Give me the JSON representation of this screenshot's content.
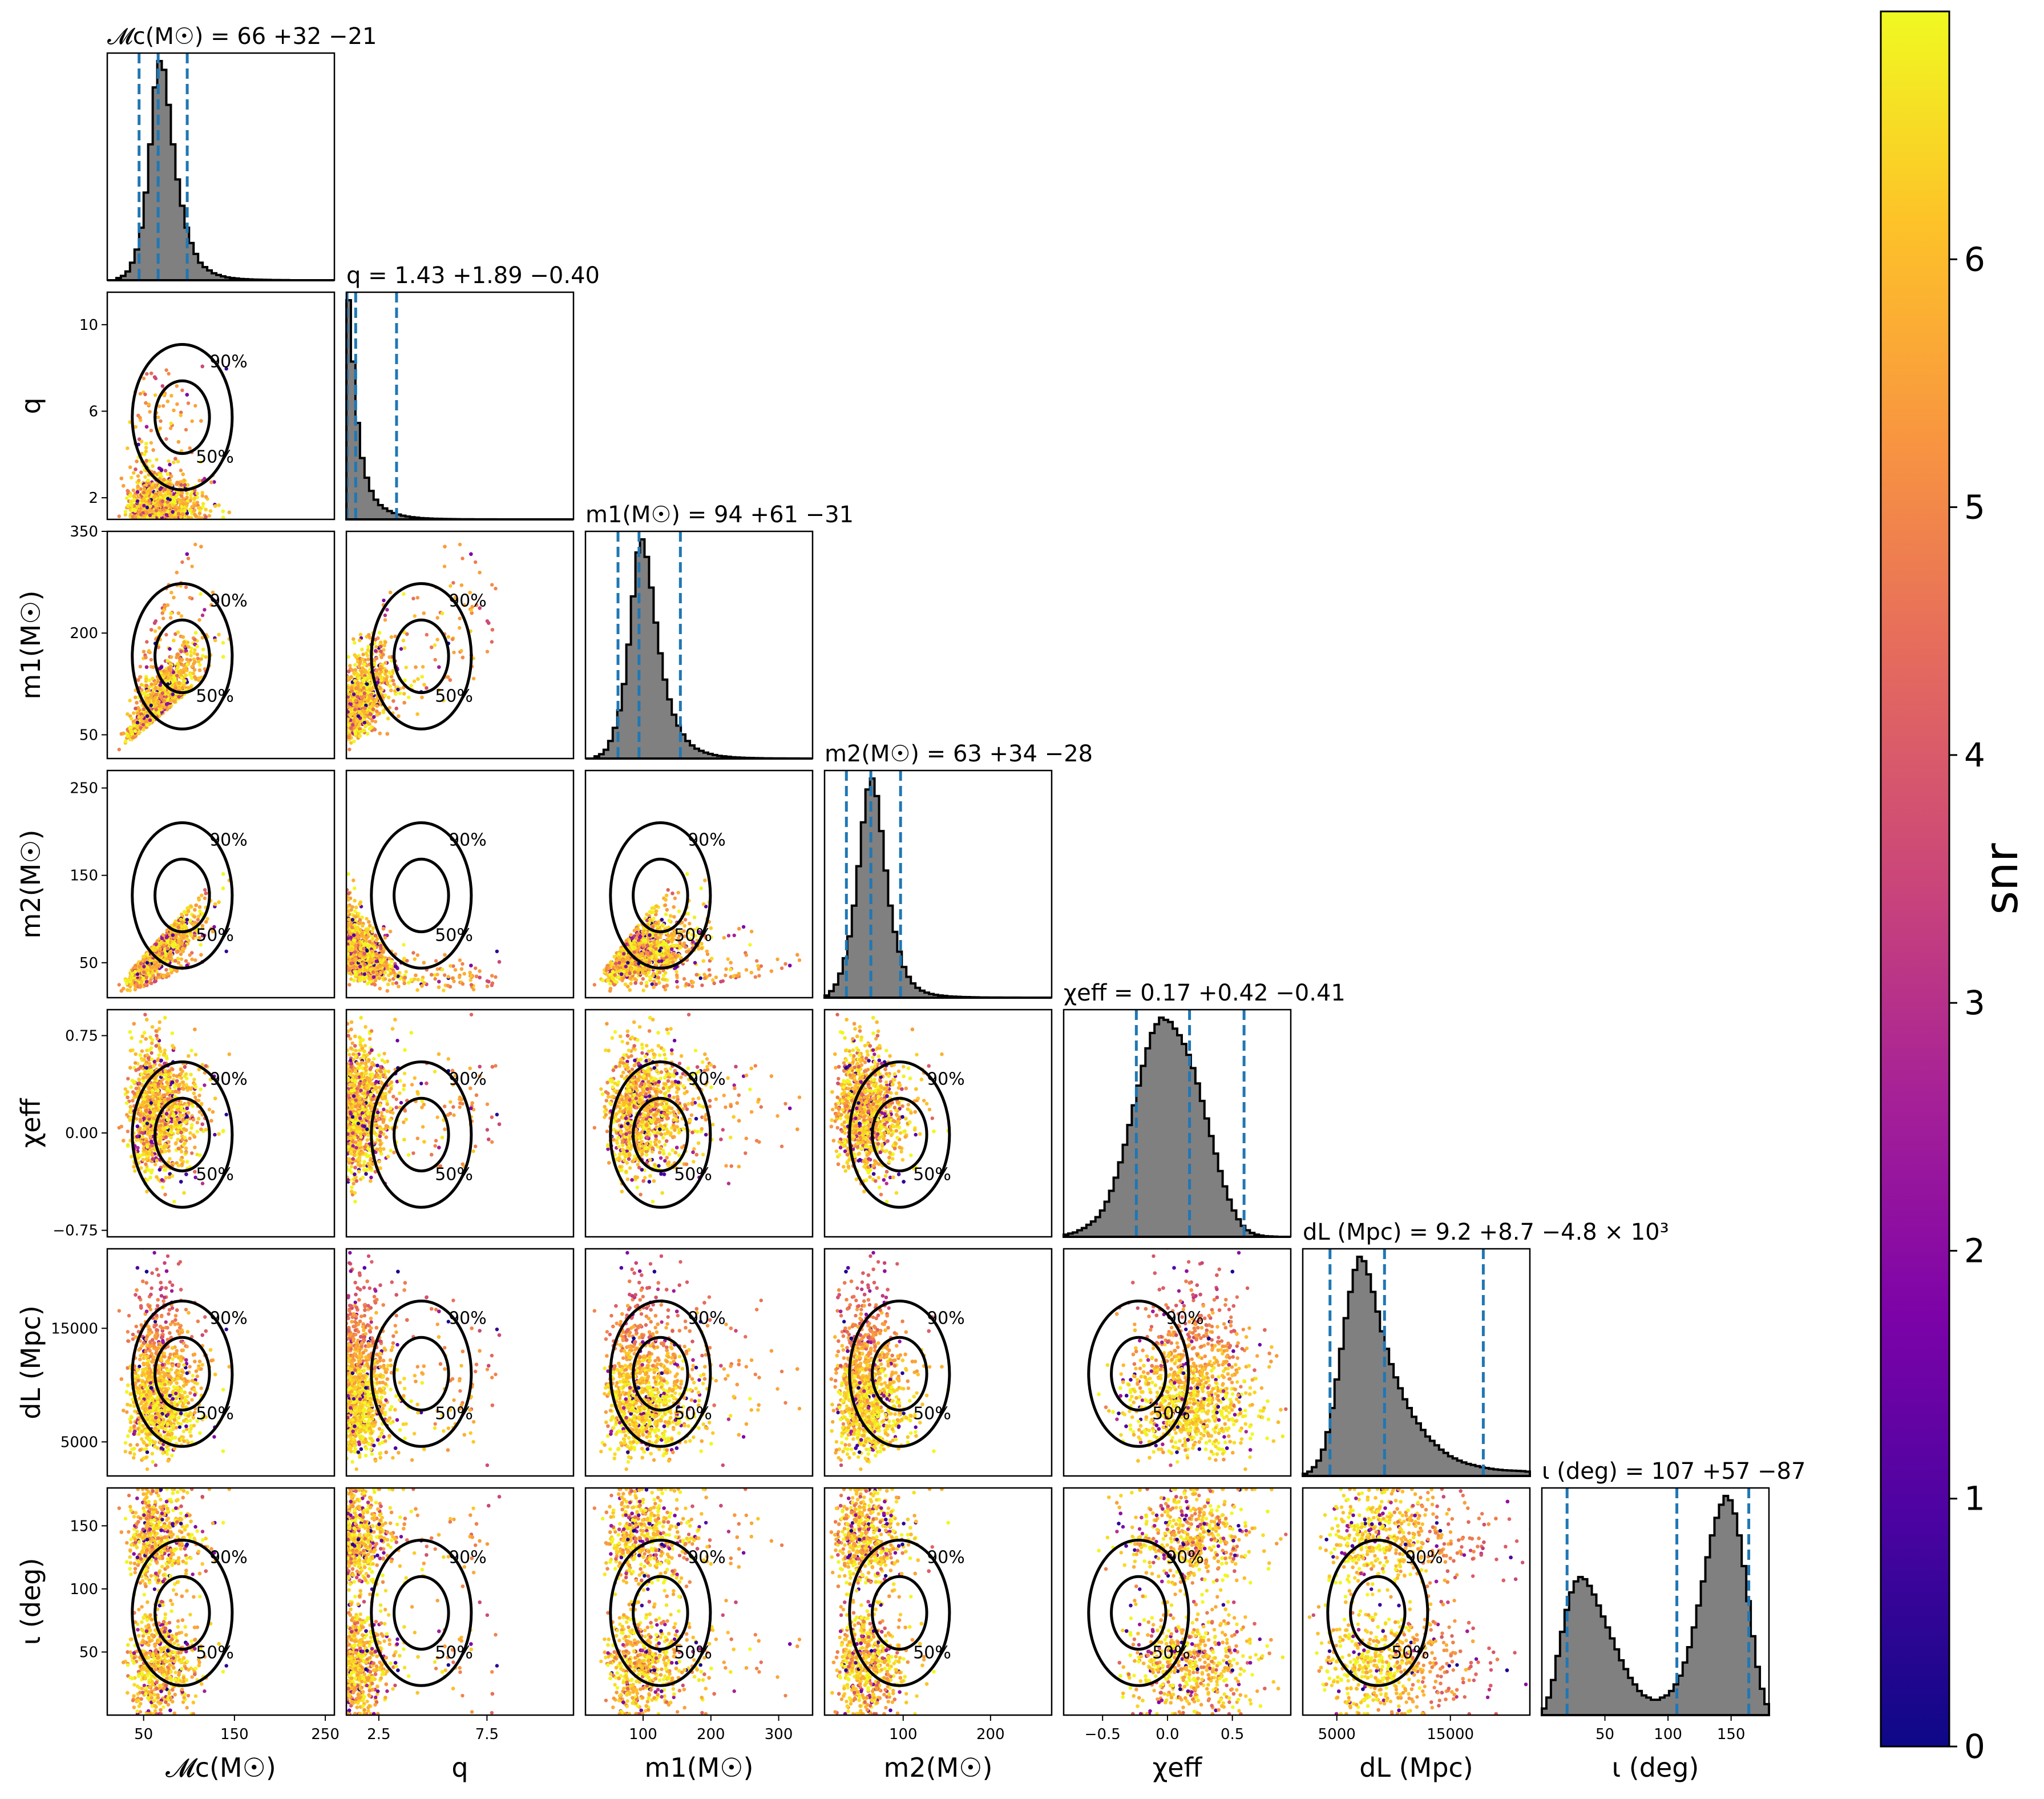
{
  "chart_data": {
    "type": "scatter",
    "description_type": "corner",
    "parameters": [
      {
        "key": "mc",
        "axis_label": "𝓜c(M☉)",
        "title": "𝓜c(M☉) = 66 +32 −21",
        "range": [
          10,
          260
        ],
        "ticks": [
          50,
          150,
          250
        ],
        "median": 66,
        "low": 45,
        "high": 98
      },
      {
        "key": "q",
        "axis_label": "q",
        "title": "q = 1.43 +1.89 −0.40",
        "range": [
          1,
          11.5
        ],
        "ticks": [
          2.5,
          7.5
        ],
        "yticks": [
          2,
          6,
          10
        ],
        "median": 1.43,
        "low": 1.03,
        "high": 3.32
      },
      {
        "key": "m1",
        "axis_label": "m1(M☉)",
        "title": "m1(M☉) = 94 +61 −31",
        "range": [
          15,
          350
        ],
        "ticks": [
          100,
          200,
          300
        ],
        "yticks": [
          50,
          200,
          350
        ],
        "median": 94,
        "low": 63,
        "high": 155
      },
      {
        "key": "m2",
        "axis_label": "m2(M☉)",
        "title": "m2(M☉) = 63 +34 −28",
        "range": [
          10,
          270
        ],
        "ticks": [
          100,
          200
        ],
        "yticks": [
          50,
          150,
          250
        ],
        "median": 63,
        "low": 35,
        "high": 97
      },
      {
        "key": "chi",
        "axis_label": "χeff",
        "title": "χeff = 0.17 +0.42 −0.41",
        "range": [
          -0.8,
          0.95
        ],
        "ticks": [
          -0.5,
          0.0,
          0.5
        ],
        "yticks": [
          -0.75,
          0.0,
          0.75
        ],
        "tick_labels": [
          "−0.5",
          "0.0",
          "0.5"
        ],
        "ytick_labels": [
          "−0.75",
          "0.00",
          "0.75"
        ],
        "median": 0.17,
        "low": -0.24,
        "high": 0.59
      },
      {
        "key": "dl",
        "axis_label": "dL (Mpc)",
        "title": "dL (Mpc) = 9.2 +8.7 −4.8 × 10³",
        "range": [
          2000,
          22000
        ],
        "ticks": [
          5000,
          15000
        ],
        "yticks": [
          5000,
          15000
        ],
        "median": 9200,
        "low": 4400,
        "high": 17900
      },
      {
        "key": "iota",
        "axis_label": "ι (deg)",
        "title": "ι (deg) = 107 +57 −87",
        "range": [
          0,
          180
        ],
        "ticks": [
          50,
          100,
          150
        ],
        "yticks": [
          50,
          100,
          150
        ],
        "median": 107,
        "low": 20,
        "high": 164
      }
    ],
    "histograms": {
      "mc": {
        "bins_from": 10,
        "bins_to": 260,
        "counts": [
          0,
          0,
          1,
          2,
          4,
          8,
          14,
          24,
          40,
          62,
          88,
          100,
          96,
          80,
          62,
          46,
          34,
          24,
          17,
          12,
          8,
          6,
          4.5,
          3.2,
          2.4,
          1.8,
          1.3,
          1,
          0.8,
          0.6,
          0.5,
          0.4,
          0.3,
          0.25,
          0.2,
          0.15,
          0.1,
          0.1,
          0.05,
          0.05,
          0,
          0,
          0,
          0,
          0,
          0,
          0,
          0,
          0,
          0
        ]
      },
      "q": {
        "bins_from": 1,
        "bins_to": 11.5,
        "counts": [
          100,
          72,
          44,
          28,
          19,
          13,
          9,
          6.5,
          5,
          3.8,
          2.9,
          2.2,
          1.7,
          1.3,
          1,
          0.8,
          0.6,
          0.5,
          0.4,
          0.3,
          0.25,
          0.2,
          0.15,
          0.12,
          0.1,
          0.08,
          0.06,
          0.05,
          0.04,
          0.03,
          0.03,
          0.02,
          0.02,
          0.01,
          0.01,
          0.01,
          0,
          0,
          0,
          0,
          0,
          0,
          0,
          0,
          0,
          0,
          0,
          0,
          0,
          0
        ]
      },
      "m1": {
        "bins_from": 15,
        "bins_to": 350,
        "counts": [
          0,
          0,
          1,
          2,
          4,
          8,
          14,
          22,
          34,
          52,
          74,
          94,
          100,
          92,
          78,
          62,
          48,
          36,
          27,
          20,
          15,
          11,
          8,
          6,
          4.5,
          3.5,
          2.7,
          2.1,
          1.6,
          1.2,
          1,
          0.8,
          0.6,
          0.5,
          0.4,
          0.3,
          0.25,
          0.2,
          0.15,
          0.1,
          0.1,
          0.08,
          0.06,
          0.05,
          0.04,
          0.03,
          0.02,
          0.01,
          0,
          0
        ]
      },
      "m2": {
        "bins_from": 10,
        "bins_to": 270,
        "counts": [
          1,
          3,
          6,
          11,
          18,
          28,
          42,
          60,
          80,
          95,
          100,
          92,
          76,
          58,
          42,
          30,
          21,
          14,
          9.5,
          6.5,
          4.5,
          3.2,
          2.3,
          1.7,
          1.3,
          1,
          0.8,
          0.6,
          0.5,
          0.4,
          0.3,
          0.25,
          0.2,
          0.15,
          0.1,
          0.1,
          0.08,
          0.06,
          0.05,
          0.04,
          0.03,
          0.02,
          0.02,
          0.01,
          0.01,
          0,
          0,
          0,
          0,
          0
        ]
      },
      "chi": {
        "bins_from": -0.8,
        "bins_to": 0.95,
        "counts": [
          1,
          1.5,
          2,
          3,
          4,
          5.5,
          7,
          9,
          12,
          16,
          21,
          27,
          34,
          42,
          51,
          60,
          69,
          78,
          86,
          93,
          97,
          100,
          99,
          98,
          95,
          92,
          88,
          83,
          77,
          70,
          62,
          54,
          46,
          38,
          30,
          23,
          17,
          12,
          8,
          5,
          3,
          1.8,
          1,
          0.6,
          0.3,
          0.2,
          0.1,
          0,
          0,
          0
        ]
      },
      "dl": {
        "bins_from": 2000,
        "bins_to": 22000,
        "counts": [
          1,
          2,
          4,
          7,
          12,
          20,
          31,
          44,
          58,
          72,
          84,
          94,
          100,
          98,
          92,
          84,
          75,
          66,
          58,
          51,
          45,
          40,
          35,
          31,
          27,
          24,
          21,
          18,
          16,
          14,
          12,
          10.5,
          9,
          8,
          7,
          6.2,
          5.5,
          5,
          4.5,
          4,
          3.6,
          3.3,
          3,
          2.8,
          2.6,
          2.5,
          2.4,
          2.3,
          2.2,
          2
        ]
      },
      "iota": {
        "bins_from": 0,
        "bins_to": 180,
        "counts": [
          3,
          8,
          16,
          27,
          38,
          48,
          56,
          61,
          63,
          62,
          59,
          55,
          50,
          45,
          40,
          35,
          30,
          25,
          21,
          17,
          14,
          11,
          9,
          8,
          7,
          7,
          8,
          9,
          11,
          14,
          18,
          24,
          31,
          40,
          50,
          61,
          72,
          82,
          90,
          96,
          100,
          98,
          92,
          82,
          68,
          52,
          36,
          22,
          12,
          5
        ]
      }
    },
    "contour_levels": [
      "50%",
      "90%"
    ],
    "colorbar": {
      "label": "snr",
      "min": 0,
      "max": 7,
      "ticks": [
        0,
        1,
        2,
        3,
        4,
        5,
        6
      ],
      "colormap": "plasma"
    },
    "colors": {
      "histogram_fill": "#808080",
      "quantile_line": "#1f77b4",
      "contour": "#000000"
    }
  }
}
